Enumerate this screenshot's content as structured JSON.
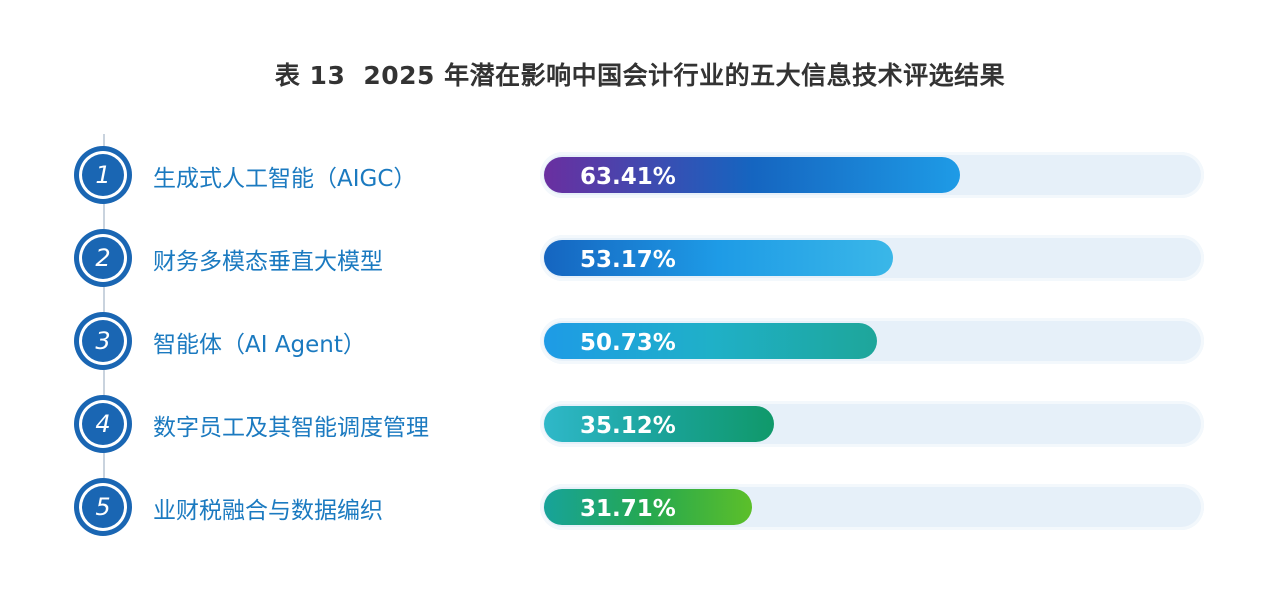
{
  "title": {
    "number": "表 13",
    "text": "2025 年潜在影响中国会计行业的五大信息技术评选结果"
  },
  "chart_data": {
    "type": "bar",
    "orientation": "horizontal",
    "xlim": [
      0,
      100
    ],
    "categories": [
      "生成式人工智能（AIGC）",
      "财务多模态垂直大模型",
      "智能体（AI Agent）",
      "数字员工及其智能调度管理",
      "业财税融合与数据编织"
    ],
    "ranks": [
      "1",
      "2",
      "3",
      "4",
      "5"
    ],
    "values": [
      63.41,
      53.17,
      50.73,
      35.12,
      31.71
    ],
    "value_labels": [
      "63.41%",
      "53.17%",
      "50.73%",
      "35.12%",
      "31.71%"
    ],
    "bar_gradients": [
      [
        "#6a2fa0",
        "#1565c0",
        "#1e9be6"
      ],
      [
        "#1565c0",
        "#1e9be6",
        "#3ab7e8"
      ],
      [
        "#1e9be6",
        "#1fb0c8",
        "#1ea69a"
      ],
      [
        "#2fb8c9",
        "#1aa39a",
        "#10996a"
      ],
      [
        "#17a39a",
        "#25a84f",
        "#5cbf2a"
      ]
    ],
    "track_color": "#e6f0f9",
    "label_color": "#1b7ac0",
    "badge_color": "#1a66b3"
  }
}
